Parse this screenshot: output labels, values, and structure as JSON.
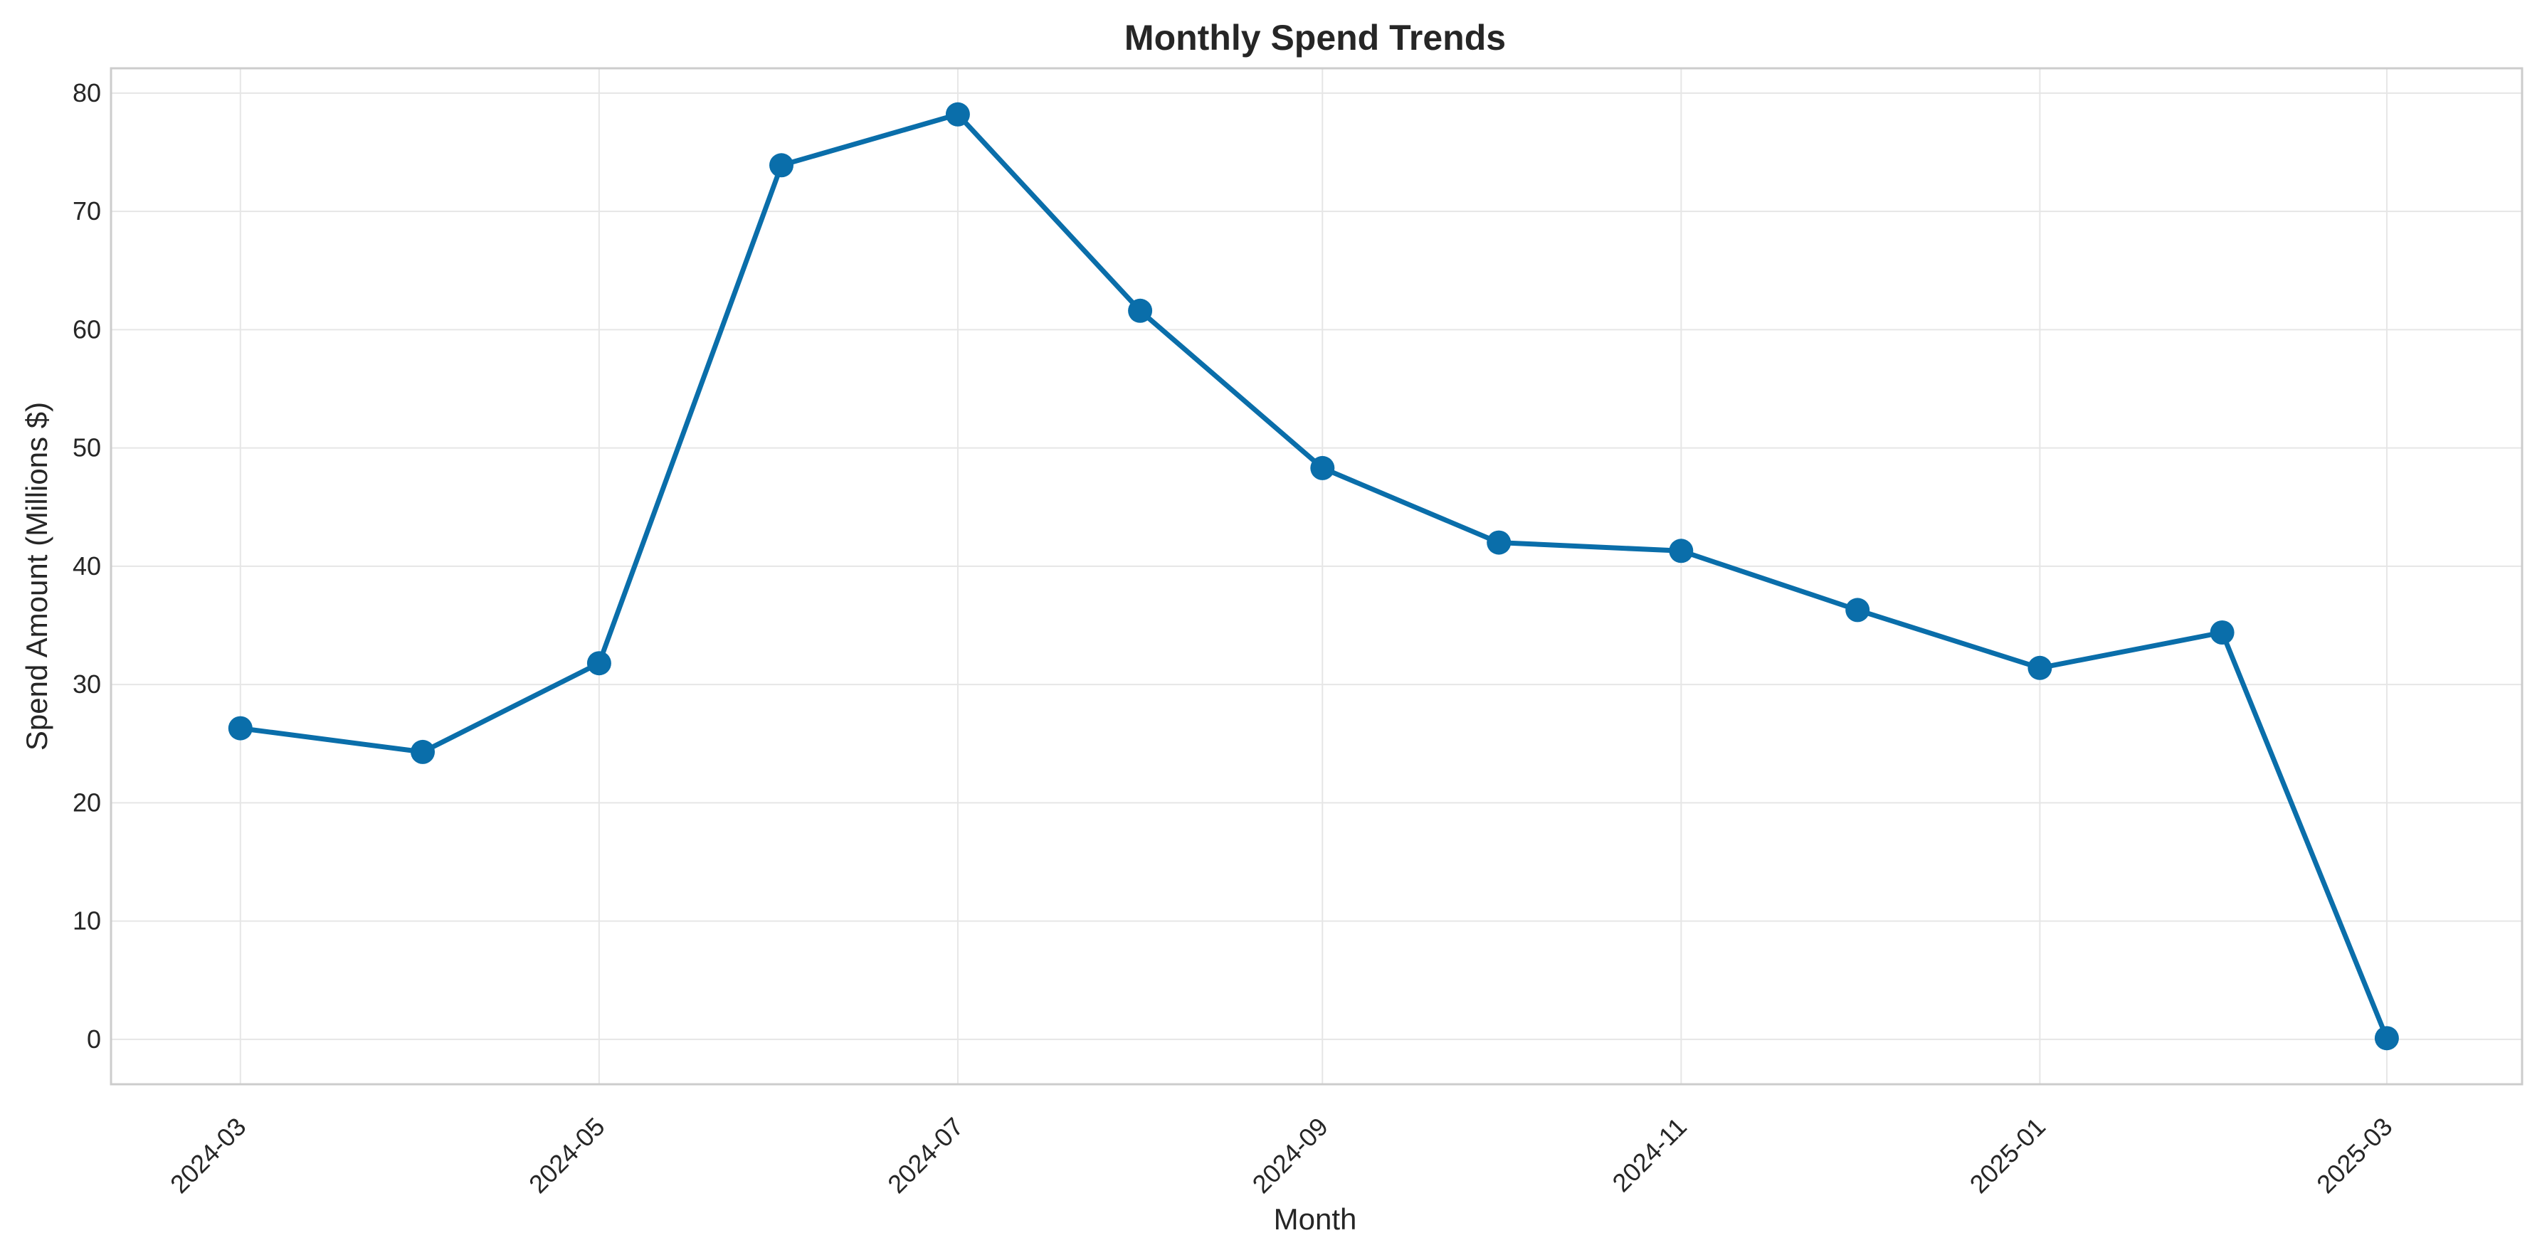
{
  "chart_data": {
    "type": "line",
    "title": "Monthly Spend Trends",
    "xlabel": "Month",
    "ylabel": "Spend Amount (Millions $)",
    "x": [
      "2024-03",
      "2024-04",
      "2024-05",
      "2024-06",
      "2024-07",
      "2024-08",
      "2024-09",
      "2024-10",
      "2024-11",
      "2024-12",
      "2025-01",
      "2025-02",
      "2025-03"
    ],
    "series": [
      {
        "values": [
          26.3,
          24.3,
          31.8,
          73.9,
          78.2,
          61.6,
          48.3,
          42.0,
          41.3,
          36.3,
          31.4,
          34.4,
          0.1
        ]
      }
    ],
    "x_ticks": [
      "2024-03",
      "2024-05",
      "2024-07",
      "2024-09",
      "2024-11",
      "2025-01",
      "2025-03"
    ],
    "y_ticks": [
      0,
      10,
      20,
      30,
      40,
      50,
      60,
      70,
      80
    ],
    "ylim": [
      -3.8,
      82.1
    ],
    "xlim": [
      "2024-02-08",
      "2025-03-24"
    ],
    "grid": true,
    "legend": "none",
    "colors": {
      "line": "#0a6eaa",
      "marker": "#0a6eaa",
      "grid": "#e6e6e6",
      "frame": "#cccccc",
      "text": "#262626"
    }
  }
}
